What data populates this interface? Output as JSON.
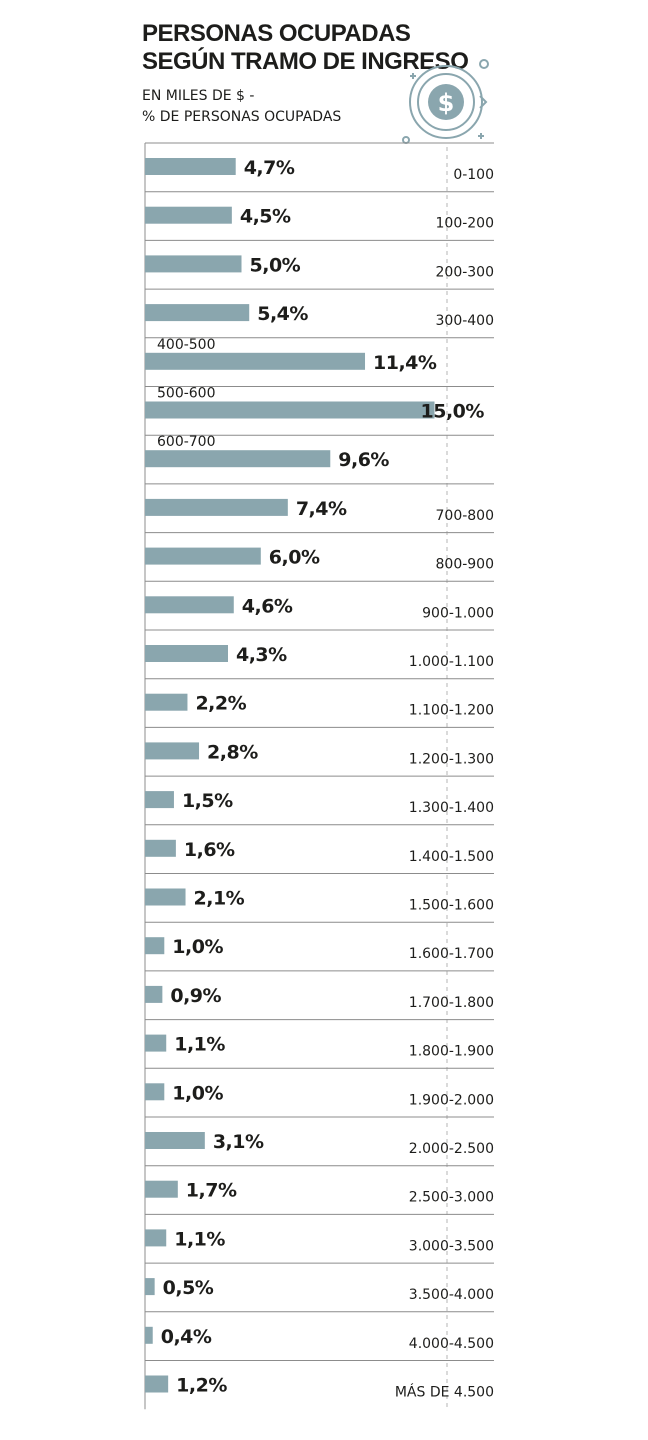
{
  "chart_data": {
    "type": "bar",
    "title": "PERSONAS OCUPADAS SEGÚN TRAMO DE INGRESO",
    "subtitle_lines": [
      "EN MILES DE $ -",
      "% DE PERSONAS OCUPADAS"
    ],
    "icon": "dollar-coin-icon",
    "bar_color": "#8aa6ae",
    "unit": "%",
    "categories": [
      "0-100",
      "100-200",
      "200-300",
      "300-400",
      "400-500",
      "500-600",
      "600-700",
      "700-800",
      "800-900",
      "900-1.000",
      "1.000-1.100",
      "1.100-1.200",
      "1.200-1.300",
      "1.300-1.400",
      "1.400-1.500",
      "1.500-1.600",
      "1.600-1.700",
      "1.700-1.800",
      "1.800-1.900",
      "1.900-2.000",
      "2.000-2.500",
      "2.500-3.000",
      "3.000-3.500",
      "3.500-4.000",
      "4.000-4.500",
      "MÁS DE 4.500"
    ],
    "values": [
      4.7,
      4.5,
      5.0,
      5.4,
      11.4,
      15.0,
      9.6,
      7.4,
      6.0,
      4.6,
      4.3,
      2.2,
      2.8,
      1.5,
      1.6,
      2.1,
      1.0,
      0.9,
      1.1,
      1.0,
      3.1,
      1.7,
      1.1,
      0.5,
      0.4,
      1.2
    ],
    "value_labels": [
      "4,7%",
      "4,5%",
      "5,0%",
      "5,4%",
      "11,4%",
      "15,0%",
      "9,6%",
      "7,4%",
      "6,0%",
      "4,6%",
      "4,3%",
      "2,2%",
      "2,8%",
      "1,5%",
      "1,6%",
      "2,1%",
      "1,0%",
      "0,9%",
      "1,1%",
      "1,0%",
      "3,1%",
      "1,7%",
      "1,1%",
      "0,5%",
      "0,4%",
      "1,2%"
    ]
  }
}
